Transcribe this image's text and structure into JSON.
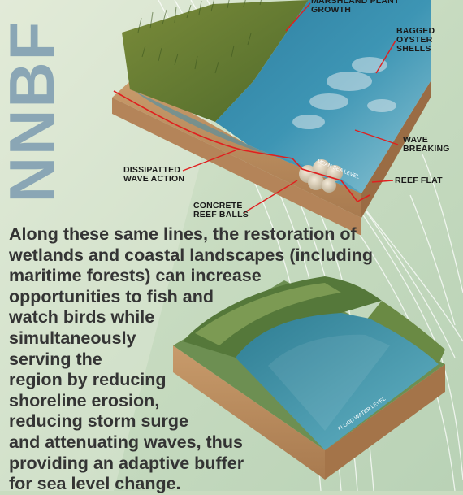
{
  "logo": {
    "text": "NNBF"
  },
  "upper_diagram": {
    "labels": {
      "marsh": "MARSHLAND PLANT\nGROWTH",
      "oyster": "BAGGED\nOYSTER\nSHELLS",
      "wave": "WAVE\nBREAKING",
      "dissipated": "DISSIPATTED\nWAVE ACTION",
      "reef_flat": "REEF FLAT",
      "concrete": "CONCRETE\nREEF BALLS",
      "mean_sea_level": "MEAN SEA LEVEL"
    },
    "label_line_color": "#e01f1f"
  },
  "lower_diagram": {
    "labels": {
      "flood_water_level": "FLOOD WATER LEVEL"
    }
  },
  "body": {
    "lines": [
      "Along these same lines, the restoration of",
      "wetlands and coastal landscapes (including",
      "maritime forests) can increase",
      "opportunities to fish and",
      "watch birds while",
      "simultaneously",
      "serving the",
      "region by reducing",
      "shoreline erosion,",
      "reducing storm surge",
      "and attenuating waves, thus",
      "providing an adaptive buffer",
      "for sea level change."
    ]
  }
}
